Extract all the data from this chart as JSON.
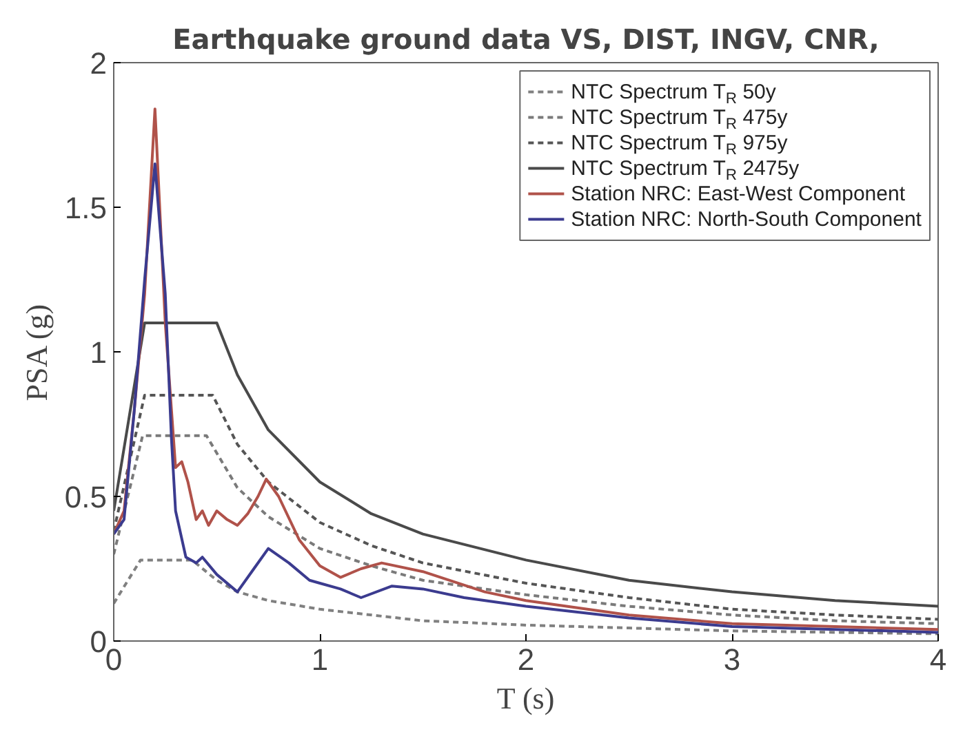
{
  "chart_data": {
    "type": "line",
    "title": "Earthquake ground data VS, DIST, INGV, CNR,",
    "xlabel": "T (s)",
    "ylabel": "PSA (g)",
    "xlim": [
      0,
      4
    ],
    "ylim": [
      0,
      2
    ],
    "xticks": [
      0,
      1,
      2,
      3,
      4
    ],
    "yticks": [
      0,
      0.5,
      1,
      1.5,
      2
    ],
    "grid": false,
    "legend": "top right",
    "marker": "none",
    "series": [
      {
        "name": "NTC Spectrum T$_{R}$ 50y",
        "color": "#808080",
        "line_style": "dashed",
        "x": [
          0,
          0.13,
          0.38,
          0.5,
          0.6,
          0.75,
          1,
          1.5,
          2,
          2.5,
          3,
          3.5,
          4
        ],
        "values": [
          0.13,
          0.28,
          0.28,
          0.21,
          0.17,
          0.14,
          0.11,
          0.07,
          0.055,
          0.045,
          0.035,
          0.03,
          0.025
        ]
      },
      {
        "name": "NTC Spectrum T$_{R}$ 475y",
        "color": "#7a7a7a",
        "line_style": "dashed",
        "x": [
          0,
          0.14,
          0.45,
          0.6,
          0.75,
          1,
          1.25,
          1.5,
          2,
          2.5,
          3,
          3.5,
          4
        ],
        "values": [
          0.3,
          0.71,
          0.71,
          0.53,
          0.43,
          0.32,
          0.26,
          0.21,
          0.16,
          0.12,
          0.09,
          0.07,
          0.06
        ]
      },
      {
        "name": "NTC Spectrum T$_{R}$ 975y",
        "color": "#555555",
        "line_style": "dashed",
        "x": [
          0,
          0.15,
          0.48,
          0.6,
          0.75,
          1,
          1.25,
          1.5,
          2,
          2.5,
          3,
          3.5,
          4
        ],
        "values": [
          0.38,
          0.85,
          0.85,
          0.68,
          0.55,
          0.41,
          0.33,
          0.27,
          0.2,
          0.15,
          0.11,
          0.09,
          0.075
        ]
      },
      {
        "name": "NTC Spectrum T$_{R}$ 2475y",
        "color": "#4a4a4a",
        "line_style": "solid",
        "x": [
          0,
          0.15,
          0.5,
          0.6,
          0.75,
          1,
          1.25,
          1.5,
          2,
          2.5,
          3,
          3.5,
          4
        ],
        "values": [
          0.45,
          1.1,
          1.1,
          0.92,
          0.73,
          0.55,
          0.44,
          0.37,
          0.28,
          0.21,
          0.17,
          0.14,
          0.12
        ]
      },
      {
        "name": "Station NRC: East-West Component",
        "color": "#b0524a",
        "line_style": "solid",
        "x": [
          0,
          0.05,
          0.1,
          0.15,
          0.2,
          0.25,
          0.3,
          0.33,
          0.36,
          0.4,
          0.43,
          0.46,
          0.5,
          0.55,
          0.6,
          0.65,
          0.7,
          0.74,
          0.8,
          0.9,
          1.0,
          1.1,
          1.2,
          1.3,
          1.5,
          1.8,
          2.0,
          2.5,
          3,
          3.5,
          4
        ],
        "values": [
          0.37,
          0.45,
          0.8,
          1.2,
          1.84,
          1.1,
          0.6,
          0.62,
          0.55,
          0.42,
          0.45,
          0.4,
          0.45,
          0.42,
          0.4,
          0.44,
          0.5,
          0.56,
          0.5,
          0.35,
          0.26,
          0.22,
          0.25,
          0.27,
          0.24,
          0.17,
          0.14,
          0.09,
          0.06,
          0.05,
          0.04
        ]
      },
      {
        "name": "Station NRC: North-South Component",
        "color": "#3b3b8f",
        "line_style": "solid",
        "x": [
          0,
          0.05,
          0.1,
          0.15,
          0.2,
          0.25,
          0.28,
          0.3,
          0.35,
          0.4,
          0.43,
          0.5,
          0.6,
          0.68,
          0.75,
          0.85,
          0.95,
          1.0,
          1.1,
          1.2,
          1.35,
          1.5,
          1.7,
          2.0,
          2.5,
          3,
          3.5,
          4
        ],
        "values": [
          0.37,
          0.42,
          0.8,
          1.25,
          1.65,
          1.2,
          0.7,
          0.45,
          0.29,
          0.27,
          0.29,
          0.23,
          0.17,
          0.25,
          0.32,
          0.27,
          0.21,
          0.2,
          0.18,
          0.15,
          0.19,
          0.18,
          0.15,
          0.12,
          0.08,
          0.05,
          0.04,
          0.03
        ]
      }
    ]
  }
}
